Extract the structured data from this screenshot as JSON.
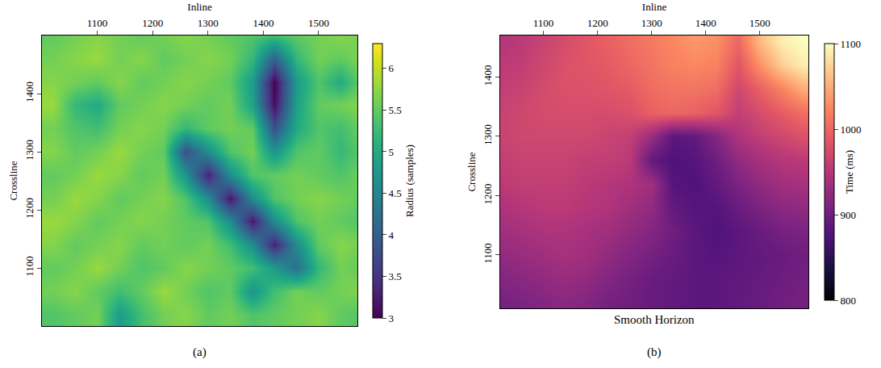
{
  "chart_data": [
    {
      "type": "heatmap",
      "panel_label": "(a)",
      "x_label": "Inline",
      "y_label": "Crossline",
      "color": "viridis",
      "x": [
        1020,
        1060,
        1100,
        1140,
        1180,
        1220,
        1260,
        1300,
        1340,
        1380,
        1420,
        1460,
        1500,
        1540,
        1580
      ],
      "y": [
        1020,
        1060,
        1100,
        1140,
        1180,
        1220,
        1260,
        1300,
        1340,
        1380,
        1420,
        1460,
        1500
      ],
      "z": [
        [
          5.4,
          5.5,
          5.6,
          4.8,
          5.3,
          5.6,
          5.7,
          5.5,
          5.6,
          5.4,
          5.5,
          5.6,
          5.7,
          5.5,
          5.4
        ],
        [
          5.6,
          5.7,
          5.5,
          5.3,
          5.5,
          5.8,
          5.6,
          5.4,
          5.5,
          4.7,
          5.3,
          5.6,
          5.5,
          5.6,
          5.7
        ],
        [
          5.5,
          5.6,
          5.8,
          5.6,
          5.4,
          5.5,
          5.7,
          5.6,
          5.5,
          5.3,
          4.8,
          4.2,
          5.2,
          5.6,
          5.5
        ],
        [
          5.7,
          5.5,
          5.6,
          5.7,
          5.5,
          5.6,
          5.5,
          5.6,
          5.3,
          4.6,
          3.3,
          4.6,
          5.5,
          5.7,
          5.6
        ],
        [
          5.8,
          5.7,
          5.5,
          5.6,
          5.7,
          5.6,
          5.5,
          5.4,
          4.6,
          3.2,
          4.6,
          5.4,
          5.6,
          5.5,
          5.4
        ],
        [
          5.6,
          5.8,
          5.7,
          5.5,
          5.6,
          5.7,
          5.4,
          4.6,
          3.2,
          4.6,
          5.4,
          5.6,
          5.7,
          5.6,
          5.5
        ],
        [
          5.5,
          5.6,
          5.8,
          5.7,
          5.5,
          5.6,
          4.7,
          3.3,
          4.6,
          5.4,
          5.5,
          5.6,
          5.5,
          5.4,
          5.6
        ],
        [
          5.7,
          5.5,
          5.6,
          5.8,
          5.6,
          5.5,
          3.8,
          4.6,
          5.4,
          5.6,
          4.7,
          5.4,
          5.5,
          5.2,
          5.5
        ],
        [
          5.6,
          5.4,
          5.3,
          5.6,
          5.7,
          5.6,
          5.2,
          5.5,
          5.6,
          5.5,
          3.8,
          5.0,
          5.4,
          5.3,
          5.6
        ],
        [
          5.8,
          5.2,
          5.0,
          5.5,
          5.6,
          5.7,
          5.6,
          5.5,
          5.6,
          4.9,
          3.1,
          4.9,
          5.5,
          5.6,
          5.7
        ],
        [
          5.7,
          5.6,
          5.5,
          5.7,
          5.5,
          5.6,
          5.7,
          5.6,
          5.5,
          4.8,
          3.0,
          4.8,
          5.4,
          5.0,
          5.6
        ],
        [
          5.6,
          5.7,
          5.8,
          5.6,
          5.7,
          5.5,
          5.6,
          5.7,
          5.6,
          5.2,
          4.0,
          5.2,
          5.6,
          5.5,
          5.7
        ],
        [
          5.5,
          5.6,
          5.7,
          5.6,
          5.5,
          5.6,
          5.7,
          5.6,
          5.5,
          5.4,
          5.3,
          5.5,
          5.6,
          5.7,
          5.6
        ]
      ],
      "xlim": [
        1000,
        1570
      ],
      "ylim": [
        1000,
        1500
      ],
      "xticks": [
        1100,
        1200,
        1300,
        1400,
        1500
      ],
      "yticks": [
        1100,
        1200,
        1300,
        1400
      ],
      "colorbar": {
        "title": "Radius (samples)",
        "range": [
          3,
          6.3
        ],
        "ticks": [
          3,
          3.5,
          4,
          4.5,
          5,
          5.5,
          6
        ]
      }
    },
    {
      "type": "heatmap",
      "panel_label": "(b)",
      "title": "Smooth Horizon",
      "x_label": "Inline",
      "y_label": "Crossline",
      "color": "magma",
      "x": [
        1020,
        1060,
        1100,
        1140,
        1180,
        1220,
        1260,
        1300,
        1340,
        1380,
        1420,
        1460,
        1500,
        1540,
        1580
      ],
      "y": [
        1020,
        1060,
        1100,
        1140,
        1180,
        1220,
        1260,
        1300,
        1340,
        1380,
        1420,
        1460
      ],
      "z": [
        [
          905,
          910,
          915,
          920,
          915,
          905,
          900,
          895,
          890,
          885,
          885,
          890,
          895,
          900,
          905
        ],
        [
          915,
          920,
          925,
          930,
          925,
          915,
          905,
          895,
          890,
          885,
          885,
          888,
          892,
          898,
          902
        ],
        [
          925,
          930,
          935,
          940,
          935,
          925,
          915,
          905,
          895,
          885,
          880,
          885,
          890,
          895,
          900
        ],
        [
          935,
          940,
          945,
          945,
          940,
          935,
          925,
          915,
          900,
          885,
          875,
          885,
          895,
          905,
          910
        ],
        [
          945,
          950,
          955,
          955,
          950,
          945,
          935,
          925,
          890,
          880,
          880,
          895,
          910,
          920,
          925
        ],
        [
          955,
          960,
          960,
          960,
          955,
          950,
          945,
          935,
          880,
          875,
          890,
          910,
          925,
          935,
          940
        ],
        [
          960,
          965,
          965,
          965,
          960,
          960,
          955,
          890,
          875,
          880,
          900,
          925,
          940,
          950,
          955
        ],
        [
          965,
          970,
          970,
          970,
          970,
          965,
          960,
          930,
          885,
          890,
          915,
          945,
          960,
          970,
          980
        ],
        [
          965,
          970,
          975,
          975,
          975,
          975,
          980,
          995,
          1000,
          995,
          985,
          960,
          975,
          990,
          1005
        ],
        [
          960,
          965,
          975,
          980,
          980,
          985,
          990,
          1005,
          1010,
          1010,
          1005,
          970,
          995,
          1020,
          1050
        ],
        [
          955,
          960,
          970,
          980,
          985,
          990,
          1000,
          1010,
          1020,
          1025,
          1020,
          985,
          1030,
          1070,
          1090
        ],
        [
          950,
          955,
          965,
          975,
          985,
          995,
          1005,
          1015,
          1025,
          1035,
          1030,
          1000,
          1060,
          1090,
          1100
        ]
      ],
      "xlim": [
        1020,
        1590
      ],
      "ylim": [
        1010,
        1470
      ],
      "xticks": [
        1100,
        1200,
        1300,
        1400,
        1500
      ],
      "yticks": [
        1100,
        1200,
        1300,
        1400
      ],
      "colorbar": {
        "title": "Time (ms)",
        "range": [
          800,
          1100
        ],
        "ticks": [
          800,
          900,
          1000,
          1100
        ]
      }
    }
  ]
}
